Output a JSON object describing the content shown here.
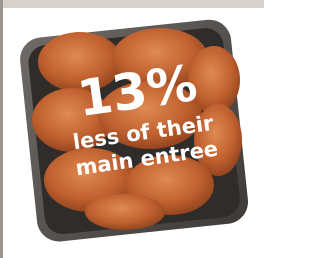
{
  "overlay_text": {
    "headline": "13%",
    "lines": [
      "less of their",
      "main entree"
    ]
  }
}
